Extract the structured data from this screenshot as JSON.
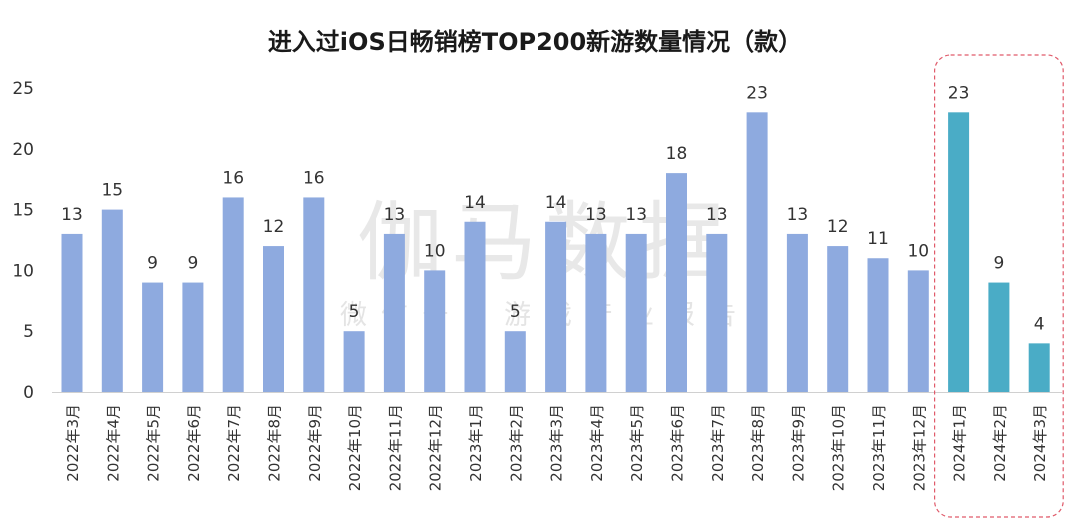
{
  "chart_data": {
    "type": "bar",
    "title": "进入过iOS日畅销榜TOP200新游数量情况（款）",
    "xlabel": "",
    "ylabel": "",
    "ylim": [
      0,
      25
    ],
    "yticks": [
      "0",
      "5",
      "10",
      "15",
      "20",
      "25"
    ],
    "categories": [
      "2022年3月",
      "2022年4月",
      "2022年5月",
      "2022年6月",
      "2022年7月",
      "2022年8月",
      "2022年9月",
      "2022年10月",
      "2022年11月",
      "2022年12月",
      "2023年1月",
      "2023年2月",
      "2023年3月",
      "2023年4月",
      "2023年5月",
      "2023年6月",
      "2023年7月",
      "2023年8月",
      "2023年9月",
      "2023年10月",
      "2023年11月",
      "2023年12月",
      "2024年1月",
      "2024年2月",
      "2024年3月"
    ],
    "values": [
      13,
      15,
      9,
      9,
      16,
      12,
      16,
      5,
      13,
      10,
      14,
      5,
      14,
      13,
      13,
      18,
      13,
      23,
      13,
      12,
      11,
      10,
      23,
      9,
      4
    ],
    "highlight_from_index": 22,
    "colors": {
      "normal": "#8eaadf",
      "highlight": "#4aacc6",
      "highlight_box": "#e05a6a",
      "text": "#333333",
      "watermark": "#d9d9d9"
    }
  },
  "watermark": {
    "main": "伽马数据",
    "sub": "微信号：游戏产业报告"
  }
}
